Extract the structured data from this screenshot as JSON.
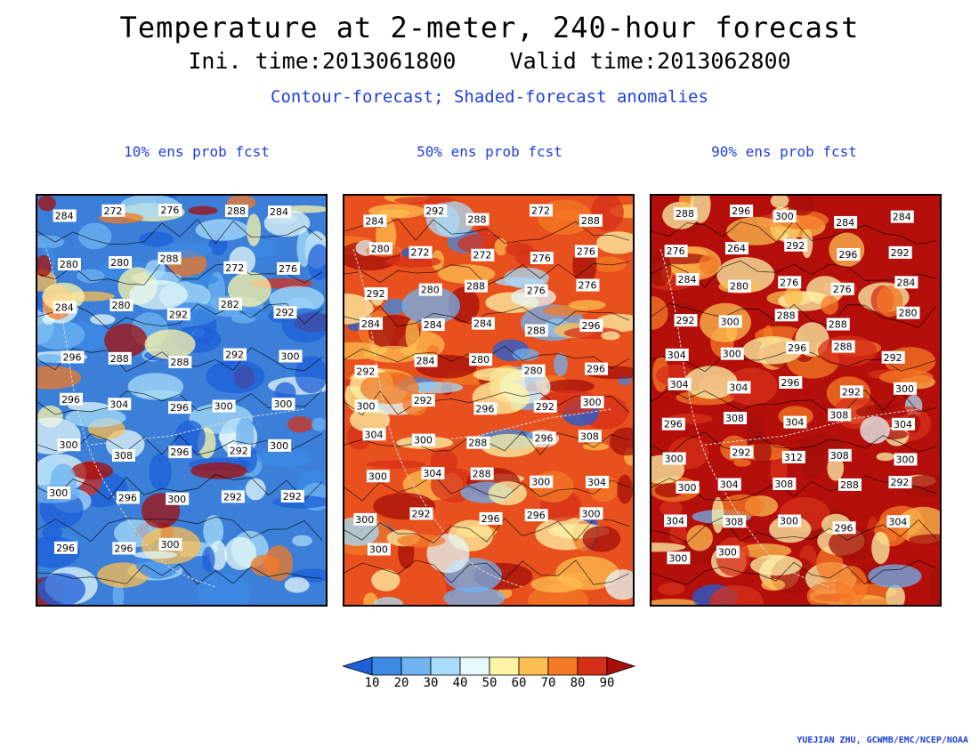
{
  "header": {
    "title": "Temperature at 2-meter, 240-hour forecast",
    "subtitle": "Ini. time:2013061800    Valid time:2013062800",
    "description": "Contour-forecast; Shaded-forecast anomalies"
  },
  "panels": [
    {
      "title": "10% ens prob fcst",
      "base_color": "#3b7fd8",
      "warm_fraction": 0.25,
      "contour_labels": [
        "284",
        "272",
        "276",
        "288",
        "284",
        "280",
        "280",
        "288",
        "272",
        "276",
        "284",
        "280",
        "292",
        "282",
        "292",
        "296",
        "288",
        "288",
        "292",
        "300",
        "296",
        "304",
        "296",
        "300",
        "300",
        "300",
        "308",
        "296",
        "292",
        "300",
        "300",
        "296",
        "300",
        "292",
        "292",
        "296",
        "296",
        "300"
      ]
    },
    {
      "title": "50% ens prob fcst",
      "base_color": "#e8501e",
      "warm_fraction": 0.7,
      "contour_labels": [
        "284",
        "292",
        "288",
        "272",
        "288",
        "280",
        "272",
        "272",
        "276",
        "276",
        "292",
        "280",
        "288",
        "276",
        "276",
        "284",
        "284",
        "284",
        "288",
        "296",
        "292",
        "284",
        "280",
        "280",
        "296",
        "300",
        "292",
        "296",
        "292",
        "300",
        "304",
        "300",
        "288",
        "296",
        "308",
        "300",
        "304",
        "288",
        "300",
        "304",
        "300",
        "292",
        "296",
        "296",
        "300",
        "300"
      ]
    },
    {
      "title": "90% ens prob fcst",
      "base_color": "#b40f0a",
      "warm_fraction": 0.95,
      "contour_labels": [
        "288",
        "296",
        "300",
        "284",
        "284",
        "276",
        "264",
        "292",
        "296",
        "292",
        "284",
        "280",
        "276",
        "276",
        "284",
        "292",
        "300",
        "288",
        "288",
        "280",
        "304",
        "300",
        "296",
        "288",
        "292",
        "304",
        "304",
        "296",
        "292",
        "300",
        "296",
        "308",
        "304",
        "308",
        "304",
        "300",
        "292",
        "312",
        "308",
        "300",
        "300",
        "304",
        "308",
        "288",
        "292",
        "304",
        "308",
        "300",
        "296",
        "304",
        "300",
        "300"
      ]
    }
  ],
  "colorbar": {
    "levels": [
      "10",
      "20",
      "30",
      "40",
      "50",
      "60",
      "70",
      "80",
      "90"
    ],
    "colors": [
      "#1e5fd8",
      "#3c8ae6",
      "#6fb3f0",
      "#a8dcf8",
      "#e6f8fa",
      "#fdf4a8",
      "#fdbe50",
      "#f47a26",
      "#d7301a",
      "#a50f0a"
    ]
  },
  "credit": "YUEJIAN ZHU, GCWMB/EMC/NCEP/NOAA"
}
